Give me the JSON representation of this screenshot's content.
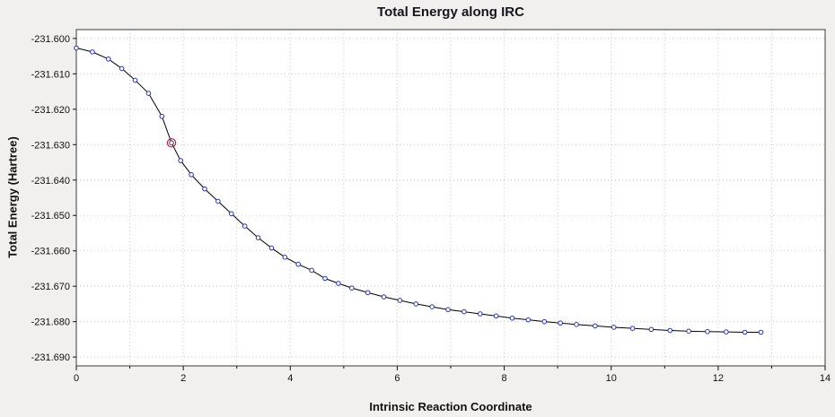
{
  "chart_data": {
    "type": "line",
    "title": "Total Energy along IRC",
    "xlabel": "Intrinsic Reaction Coordinate",
    "ylabel": "Total Energy (Hartree)",
    "xlim": [
      0,
      14
    ],
    "ylim": [
      -231.6925,
      -231.5975
    ],
    "x_ticks": [
      0,
      2,
      4,
      6,
      8,
      10,
      12,
      14
    ],
    "x_minor_step": 1,
    "y_ticks": [
      -231.6,
      -231.61,
      -231.62,
      -231.63,
      -231.64,
      -231.65,
      -231.66,
      -231.67,
      -231.68,
      -231.69
    ],
    "grid": true,
    "legend_position": "none",
    "colors": {
      "line": "#000000",
      "point_stroke": "#2233bb",
      "point_fill": "#ffffff",
      "selected_ring": "#cc2222",
      "grid": "#d4c2b2",
      "frame": "#3a3a3a",
      "plot_background": "#ffffff",
      "page_background": "#f1f0ee"
    },
    "series": [
      {
        "name": "Total Energy",
        "selected_index": 7,
        "points": [
          [
            0.0,
            -231.6027
          ],
          [
            0.3,
            -231.6038
          ],
          [
            0.6,
            -231.6058
          ],
          [
            0.85,
            -231.6085
          ],
          [
            1.1,
            -231.6118
          ],
          [
            1.35,
            -231.6155
          ],
          [
            1.6,
            -231.622
          ],
          [
            1.78,
            -231.6295
          ],
          [
            1.95,
            -231.6345
          ],
          [
            2.15,
            -231.6385
          ],
          [
            2.4,
            -231.6425
          ],
          [
            2.65,
            -231.646
          ],
          [
            2.9,
            -231.6495
          ],
          [
            3.15,
            -231.653
          ],
          [
            3.4,
            -231.6563
          ],
          [
            3.65,
            -231.6592
          ],
          [
            3.9,
            -231.6618
          ],
          [
            4.15,
            -231.6638
          ],
          [
            4.4,
            -231.6655
          ],
          [
            4.65,
            -231.6678
          ],
          [
            4.9,
            -231.6692
          ],
          [
            5.15,
            -231.6705
          ],
          [
            5.45,
            -231.6718
          ],
          [
            5.75,
            -231.673
          ],
          [
            6.05,
            -231.674
          ],
          [
            6.35,
            -231.675
          ],
          [
            6.65,
            -231.6758
          ],
          [
            6.95,
            -231.6766
          ],
          [
            7.25,
            -231.6772
          ],
          [
            7.55,
            -231.6778
          ],
          [
            7.85,
            -231.6784
          ],
          [
            8.15,
            -231.679
          ],
          [
            8.45,
            -231.6795
          ],
          [
            8.75,
            -231.68
          ],
          [
            9.05,
            -231.6804
          ],
          [
            9.35,
            -231.6808
          ],
          [
            9.7,
            -231.6812
          ],
          [
            10.05,
            -231.6816
          ],
          [
            10.4,
            -231.6819
          ],
          [
            10.75,
            -231.6822
          ],
          [
            11.1,
            -231.6825
          ],
          [
            11.45,
            -231.6827
          ],
          [
            11.8,
            -231.6828
          ],
          [
            12.15,
            -231.6829
          ],
          [
            12.5,
            -231.683
          ],
          [
            12.8,
            -231.683
          ]
        ]
      }
    ]
  }
}
